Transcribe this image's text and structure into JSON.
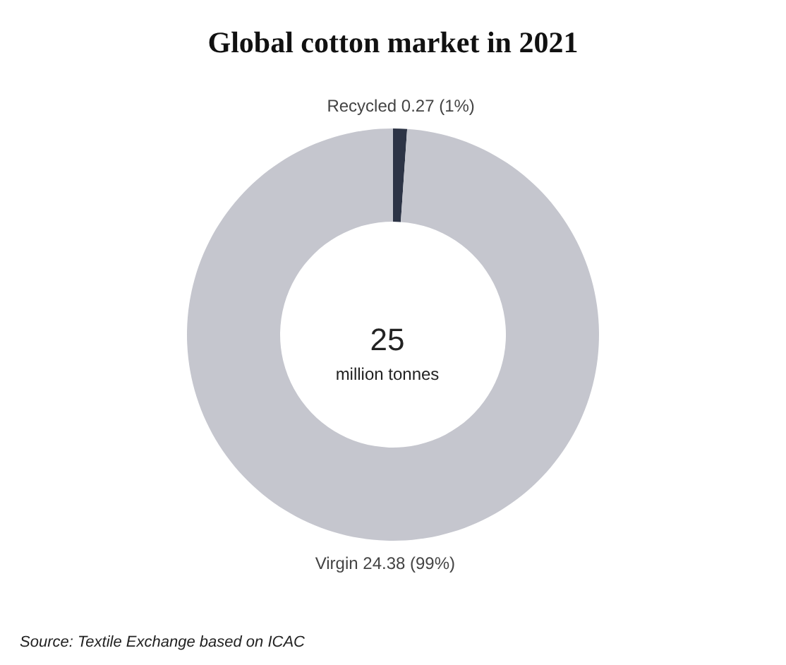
{
  "chart_data": {
    "type": "donut",
    "title": "Global cotton market in 2021",
    "categories": [
      "Recycled",
      "Virgin"
    ],
    "values": [
      0.27,
      24.38
    ],
    "colors": [
      "#2d3446",
      "#c5c6ce"
    ],
    "value_labels": [
      "0.27 (1%)",
      "24.38 (99%)"
    ],
    "annotations": [
      "25",
      "million tonnes",
      "Source: Textile Exchange based on ICAC"
    ],
    "legend": false
  }
}
